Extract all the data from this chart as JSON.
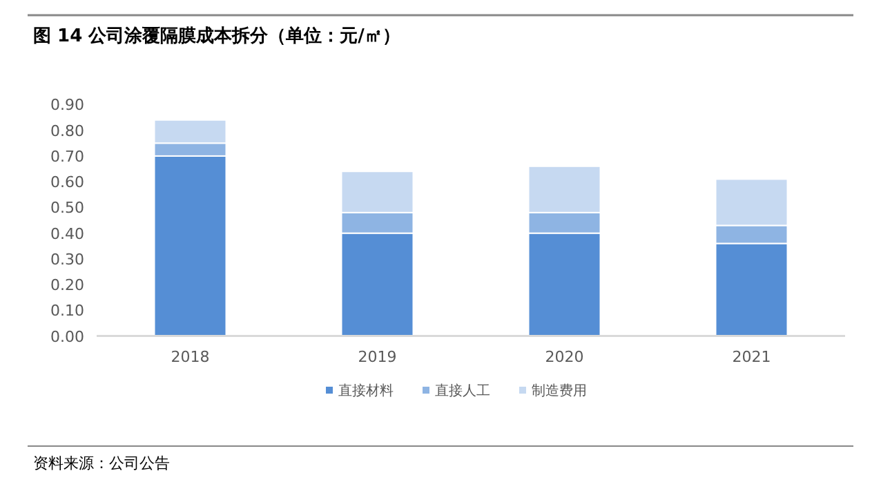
{
  "chart_data": {
    "type": "bar",
    "stacked": true,
    "title": "图 14 公司涂覆隔膜成本拆分（单位：元/㎡）",
    "annotations": [
      "资料来源：公司公告"
    ],
    "categories": [
      "2018",
      "2019",
      "2020",
      "2021"
    ],
    "series": [
      {
        "name": "直接材料",
        "color": "#558ed5",
        "values": [
          0.7,
          0.4,
          0.4,
          0.36
        ]
      },
      {
        "name": "直接人工",
        "color": "#8eb4e3",
        "values": [
          0.05,
          0.08,
          0.08,
          0.07
        ]
      },
      {
        "name": "制造费用",
        "color": "#c6d9f1",
        "values": [
          0.09,
          0.16,
          0.18,
          0.18
        ]
      }
    ],
    "ylim": [
      0,
      0.9
    ],
    "yticks": [
      {
        "value": 0,
        "label": "0.00"
      },
      {
        "value": 0.1,
        "label": "0.10"
      },
      {
        "value": 0.2,
        "label": "0.20"
      },
      {
        "value": 0.3,
        "label": "0.30"
      },
      {
        "value": 0.4,
        "label": "0.40"
      },
      {
        "value": 0.5,
        "label": "0.50"
      },
      {
        "value": 0.6,
        "label": "0.60"
      },
      {
        "value": 0.7,
        "label": "0.70"
      },
      {
        "value": 0.8,
        "label": "0.80"
      },
      {
        "value": 0.9,
        "label": "0.90"
      }
    ],
    "grid": false,
    "legend": "bottom"
  }
}
